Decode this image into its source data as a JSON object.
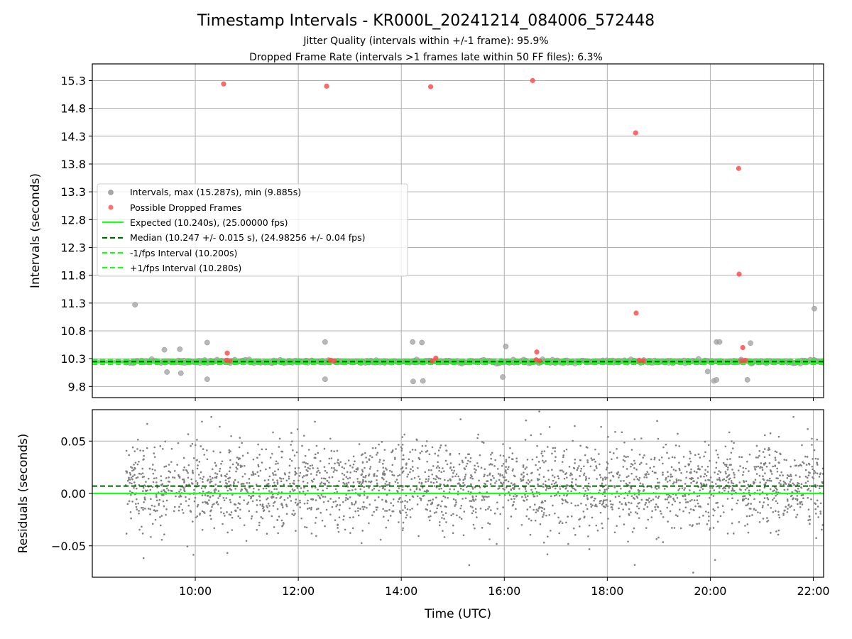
{
  "chart_data": {
    "title": "Timestamp Intervals - KR000L_20241214_084006_572448",
    "subtitle1": "Jitter Quality (intervals within +/-1 frame): 95.9%",
    "subtitle2": "Dropped Frame Rate (intervals >1 frames late within 50 FF files): 6.3%",
    "colors": {
      "intervals": "#a6a6a6",
      "dropped": "#ff4d4d",
      "expected": "#1aff1a",
      "median": "#006400",
      "residuals": "#808080",
      "grid": "#b0b0b0"
    },
    "x_axis": {
      "label": "Time (UTC)",
      "ticks": [
        "10:00",
        "12:00",
        "14:00",
        "16:00",
        "18:00",
        "20:00",
        "22:00"
      ],
      "tick_hours": [
        10,
        12,
        14,
        16,
        18,
        20,
        22
      ],
      "range_hours": [
        8.0,
        22.2
      ]
    },
    "top_panel": {
      "type": "scatter",
      "ylabel": "Intervals (seconds)",
      "yticks": [
        "9.8",
        "10.3",
        "10.8",
        "11.3",
        "11.8",
        "12.3",
        "12.8",
        "13.3",
        "13.8",
        "14.3",
        "14.8",
        "15.3"
      ],
      "ylim": [
        9.6,
        15.6
      ],
      "expected": 10.24,
      "median": 10.247,
      "minus_one_fps": 10.2,
      "plus_one_fps": 10.28,
      "legend_position": "center-left",
      "legend": [
        "Intervals, max (15.287s), min (9.885s)",
        "Possible Dropped Frames",
        "Expected (10.240s), (25.00000 fps)",
        "Median (10.247 +/- 0.015 s), (24.98256 +/- 0.04 fps)",
        "-1/fps Interval (10.200s)",
        "+1/fps Interval (10.280s)"
      ],
      "dropped_frames": [
        {
          "t": 10.55,
          "v": 15.24
        },
        {
          "t": 12.55,
          "v": 15.2
        },
        {
          "t": 14.57,
          "v": 15.19
        },
        {
          "t": 16.55,
          "v": 15.3
        },
        {
          "t": 18.55,
          "v": 14.36
        },
        {
          "t": 20.55,
          "v": 13.72
        },
        {
          "t": 20.56,
          "v": 11.82
        },
        {
          "t": 18.56,
          "v": 11.12
        },
        {
          "t": 10.62,
          "v": 10.4
        },
        {
          "t": 16.63,
          "v": 10.42
        },
        {
          "t": 20.63,
          "v": 10.5
        },
        {
          "t": 14.67,
          "v": 10.31
        },
        {
          "t": 10.6,
          "v": 10.27
        },
        {
          "t": 10.67,
          "v": 10.26
        },
        {
          "t": 12.62,
          "v": 10.27
        },
        {
          "t": 12.7,
          "v": 10.26
        },
        {
          "t": 14.6,
          "v": 10.26
        },
        {
          "t": 16.62,
          "v": 10.28
        },
        {
          "t": 16.68,
          "v": 10.26
        },
        {
          "t": 18.62,
          "v": 10.27
        },
        {
          "t": 18.7,
          "v": 10.26
        },
        {
          "t": 20.6,
          "v": 10.26
        },
        {
          "t": 20.68,
          "v": 10.27
        }
      ],
      "interval_outliers": [
        {
          "t": 8.83,
          "v": 11.27
        },
        {
          "t": 22.02,
          "v": 11.2
        },
        {
          "t": 12.52,
          "v": 10.6
        },
        {
          "t": 14.22,
          "v": 10.6
        },
        {
          "t": 14.4,
          "v": 10.59
        },
        {
          "t": 16.03,
          "v": 10.52
        },
        {
          "t": 20.12,
          "v": 10.6
        },
        {
          "t": 20.18,
          "v": 10.6
        },
        {
          "t": 20.78,
          "v": 10.58
        },
        {
          "t": 10.23,
          "v": 10.59
        },
        {
          "t": 9.7,
          "v": 10.47
        },
        {
          "t": 9.4,
          "v": 10.46
        },
        {
          "t": 12.52,
          "v": 9.93
        },
        {
          "t": 14.23,
          "v": 9.89
        },
        {
          "t": 14.42,
          "v": 9.9
        },
        {
          "t": 10.23,
          "v": 9.93
        },
        {
          "t": 15.97,
          "v": 9.97
        },
        {
          "t": 20.07,
          "v": 9.9
        },
        {
          "t": 20.12,
          "v": 9.92
        },
        {
          "t": 20.72,
          "v": 9.92
        },
        {
          "t": 9.72,
          "v": 10.04
        },
        {
          "t": 9.45,
          "v": 10.06
        },
        {
          "t": 19.95,
          "v": 10.07
        }
      ]
    },
    "bottom_panel": {
      "type": "scatter",
      "ylabel": "Residuals (seconds)",
      "yticks": [
        "−0.05",
        "0.00",
        "0.05"
      ],
      "ylim": [
        -0.08,
        0.08
      ],
      "zero_line": 0.0,
      "median_offset": 0.007,
      "residual_spread": 0.02,
      "start_hour": 8.65
    }
  }
}
